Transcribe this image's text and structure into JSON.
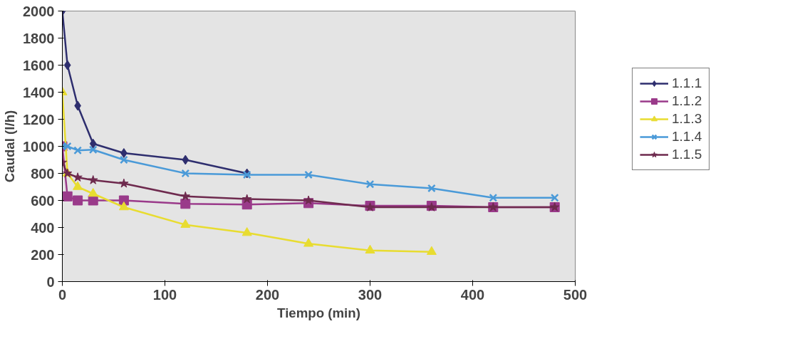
{
  "chart_data": {
    "type": "line",
    "xlabel": "Tiempo (min)",
    "ylabel": "Caudal (l/h)",
    "xlim": [
      0,
      500
    ],
    "xticks": [
      0,
      100,
      200,
      300,
      400,
      500
    ],
    "ylim": [
      0,
      2000
    ],
    "yticks": [
      0,
      200,
      400,
      600,
      800,
      1000,
      1200,
      1400,
      1600,
      1800,
      2000
    ],
    "grid": false,
    "legend": "right",
    "series": [
      {
        "name": "1.1.1",
        "color": "#2e2e6e",
        "marker": "diamond",
        "x": [
          0,
          5,
          15,
          30,
          60,
          120,
          180
        ],
        "values": [
          2000,
          1600,
          1300,
          1020,
          950,
          900,
          800
        ]
      },
      {
        "name": "1.1.2",
        "color": "#9a3a8a",
        "marker": "square",
        "x": [
          0,
          5,
          15,
          30,
          60,
          120,
          180,
          240,
          300,
          360,
          420,
          480
        ],
        "values": [
          1000,
          630,
          600,
          600,
          600,
          575,
          570,
          580,
          560,
          560,
          550,
          550
        ]
      },
      {
        "name": "1.1.3",
        "color": "#e8dc30",
        "marker": "triangle",
        "x": [
          0,
          5,
          15,
          30,
          60,
          120,
          180,
          240,
          300,
          360
        ],
        "values": [
          1400,
          800,
          700,
          650,
          550,
          420,
          360,
          280,
          230,
          220
        ]
      },
      {
        "name": "1.1.4",
        "color": "#4a9ad8",
        "marker": "cross",
        "x": [
          0,
          5,
          15,
          30,
          60,
          120,
          180,
          240,
          300,
          360,
          420,
          480
        ],
        "values": [
          1000,
          1000,
          970,
          975,
          900,
          800,
          790,
          790,
          720,
          690,
          620,
          620
        ]
      },
      {
        "name": "1.1.5",
        "color": "#6e2a4e",
        "marker": "star",
        "x": [
          0,
          5,
          15,
          30,
          60,
          120,
          180,
          240,
          300,
          360,
          420,
          480
        ],
        "values": [
          880,
          800,
          770,
          750,
          725,
          630,
          610,
          600,
          550,
          550,
          550,
          550
        ]
      }
    ]
  }
}
